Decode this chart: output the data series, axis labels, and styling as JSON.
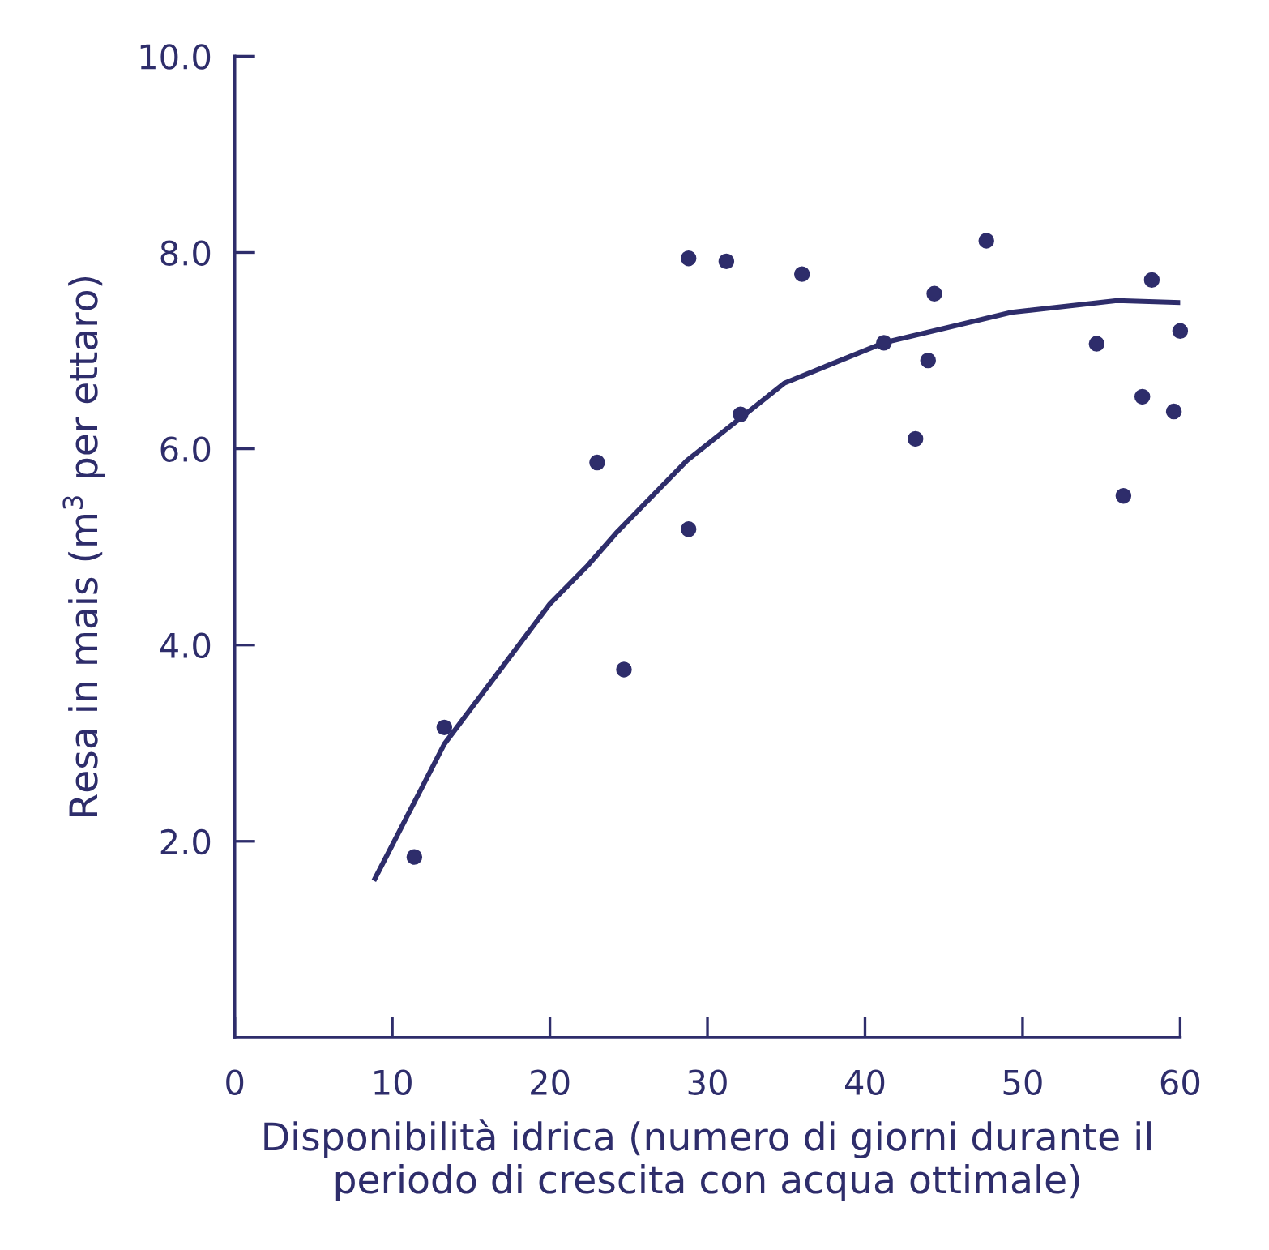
{
  "chart_data": {
    "type": "scatter",
    "xlabel": "Disponibilità idrica (numero di giorni durante il\nperiodo di crescita con acqua ottimale)",
    "ylabel": "Resa in mais (m$^{3}$ per ettaro)",
    "xlim": [
      0,
      60
    ],
    "ylim": [
      0,
      10
    ],
    "xticks": [
      0,
      10,
      20,
      30,
      40,
      50,
      60
    ],
    "yticks": [
      {
        "value": 2,
        "label": "2.0"
      },
      {
        "value": 4,
        "label": "4.0"
      },
      {
        "value": 6,
        "label": "6.0"
      },
      {
        "value": 8,
        "label": "8.0"
      },
      {
        "value": 10,
        "label": "10.0"
      }
    ],
    "grid": false,
    "legend": false,
    "marker": "circle",
    "series": [
      {
        "color": "#2e2d6b",
        "x": [
          28.8,
          31.2,
          36.0,
          47.7,
          44.4,
          58.2,
          41.2,
          44.0,
          54.7,
          60.0,
          57.6,
          59.6,
          32.1,
          43.2,
          23.0,
          56.4,
          28.8,
          24.7,
          13.3,
          11.4
        ],
        "values": [
          7.94,
          7.91,
          7.78,
          8.12,
          7.58,
          7.72,
          7.08,
          6.9,
          7.07,
          7.2,
          6.53,
          6.38,
          6.35,
          6.1,
          5.86,
          5.52,
          5.18,
          3.75,
          3.16,
          1.84
        ]
      },
      {
        "type": "line",
        "color": "#2e2d6b",
        "line_style": "solid",
        "marker": "none",
        "x": [
          8.9,
          13.3,
          20.0,
          22.4,
          24.2,
          28.7,
          34.9,
          41.2,
          49.3,
          56.0,
          60.0
        ],
        "values": [
          1.62,
          2.99,
          4.42,
          4.81,
          5.14,
          5.88,
          6.67,
          7.08,
          7.39,
          7.51,
          7.49
        ]
      }
    ]
  }
}
